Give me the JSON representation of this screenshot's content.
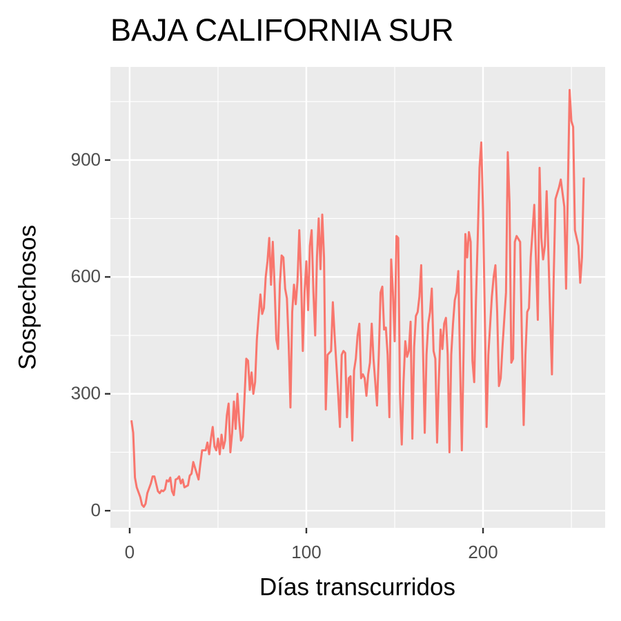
{
  "chart_data": {
    "type": "line",
    "title": "BAJA CALIFORNIA SUR",
    "x_label": "Días transcurridos",
    "y_label": "Sospechosos",
    "color": "#F8766D",
    "xlim": [
      -10.9,
      269.1
    ],
    "ylim": [
      -44,
      1139
    ],
    "xticks": [
      0,
      100,
      200
    ],
    "yticks": [
      0,
      300,
      600,
      900
    ],
    "minor_xticks": [
      50,
      150,
      250
    ],
    "minor_yticks": [
      150,
      450,
      750,
      1050
    ],
    "grid": true,
    "x": [
      1,
      2,
      3,
      4,
      6,
      7,
      8,
      9,
      10,
      12,
      13,
      14,
      16,
      17,
      18,
      19,
      20,
      21,
      22,
      23,
      24,
      25,
      26,
      27,
      28,
      29,
      30,
      31,
      33,
      34,
      35,
      36,
      37,
      38,
      39,
      40,
      41,
      43,
      44,
      45,
      46,
      47,
      48,
      49,
      50,
      51,
      52,
      53,
      54,
      55,
      56,
      57,
      58,
      59,
      60,
      61,
      62,
      63,
      64,
      65,
      66,
      67,
      68,
      69,
      70,
      71,
      72,
      73,
      74,
      75,
      76,
      77,
      78,
      79,
      80,
      81,
      82,
      83,
      84,
      85,
      86,
      87,
      88,
      89,
      90,
      91,
      92,
      93,
      94,
      95,
      96,
      97,
      98,
      99,
      100,
      101,
      102,
      103,
      104,
      105,
      106,
      107,
      108,
      109,
      110,
      111,
      112,
      114,
      115,
      116,
      118,
      119,
      120,
      121,
      122,
      123,
      124,
      125,
      126,
      127,
      128,
      129,
      130,
      131,
      132,
      133,
      134,
      135,
      136,
      137,
      138,
      140,
      141,
      142,
      143,
      144,
      145,
      146,
      147,
      148,
      149,
      150,
      151,
      152,
      153,
      154,
      155,
      156,
      157,
      158,
      159,
      160,
      161,
      162,
      163,
      164,
      165,
      166,
      167,
      168,
      169,
      170,
      171,
      172,
      173,
      174,
      175,
      176,
      177,
      178,
      179,
      180,
      181,
      182,
      183,
      184,
      185,
      186,
      187,
      188,
      189,
      190,
      191,
      192,
      193,
      194,
      195,
      196,
      197,
      198,
      199,
      200,
      201,
      202,
      203,
      205,
      206,
      207,
      208,
      209,
      210,
      211,
      213,
      214,
      215,
      216,
      217,
      218,
      219,
      221,
      222,
      223,
      224,
      225,
      226,
      227,
      229,
      230,
      231,
      232,
      233,
      234,
      235,
      236,
      238,
      239,
      240,
      241,
      242,
      243,
      244,
      246,
      247,
      248,
      249,
      250,
      251,
      252,
      254,
      255,
      256,
      257
    ],
    "values": [
      232,
      200,
      85,
      60,
      35,
      15,
      10,
      18,
      45,
      70,
      88,
      88,
      50,
      45,
      52,
      50,
      55,
      78,
      75,
      85,
      50,
      40,
      80,
      82,
      88,
      70,
      80,
      60,
      65,
      90,
      95,
      125,
      110,
      95,
      80,
      120,
      155,
      155,
      175,
      145,
      185,
      215,
      165,
      155,
      185,
      145,
      195,
      160,
      180,
      245,
      275,
      150,
      200,
      280,
      210,
      300,
      230,
      180,
      190,
      290,
      390,
      385,
      310,
      355,
      300,
      330,
      440,
      500,
      555,
      505,
      520,
      600,
      640,
      700,
      580,
      690,
      580,
      440,
      415,
      580,
      655,
      650,
      570,
      545,
      430,
      265,
      510,
      580,
      530,
      590,
      720,
      600,
      410,
      560,
      640,
      515,
      680,
      720,
      560,
      450,
      650,
      750,
      620,
      760,
      650,
      260,
      400,
      410,
      535,
      450,
      300,
      215,
      400,
      410,
      405,
      240,
      340,
      345,
      180,
      360,
      390,
      450,
      480,
      340,
      350,
      340,
      295,
      350,
      380,
      480,
      390,
      270,
      400,
      560,
      575,
      465,
      470,
      400,
      240,
      645,
      560,
      435,
      705,
      700,
      300,
      170,
      330,
      435,
      395,
      410,
      485,
      185,
      420,
      500,
      510,
      550,
      630,
      420,
      200,
      400,
      480,
      510,
      570,
      410,
      390,
      175,
      340,
      465,
      415,
      480,
      495,
      400,
      150,
      400,
      480,
      540,
      560,
      615,
      380,
      155,
      410,
      710,
      650,
      715,
      690,
      385,
      330,
      540,
      700,
      880,
      945,
      770,
      500,
      215,
      400,
      550,
      600,
      630,
      510,
      320,
      340,
      420,
      560,
      920,
      790,
      380,
      390,
      690,
      705,
      690,
      440,
      220,
      400,
      510,
      520,
      650,
      785,
      640,
      490,
      880,
      700,
      645,
      680,
      820,
      500,
      350,
      600,
      800,
      815,
      830,
      850,
      780,
      570,
      820,
      1080,
      1000,
      985,
      720,
      680,
      585,
      650,
      855
    ]
  }
}
